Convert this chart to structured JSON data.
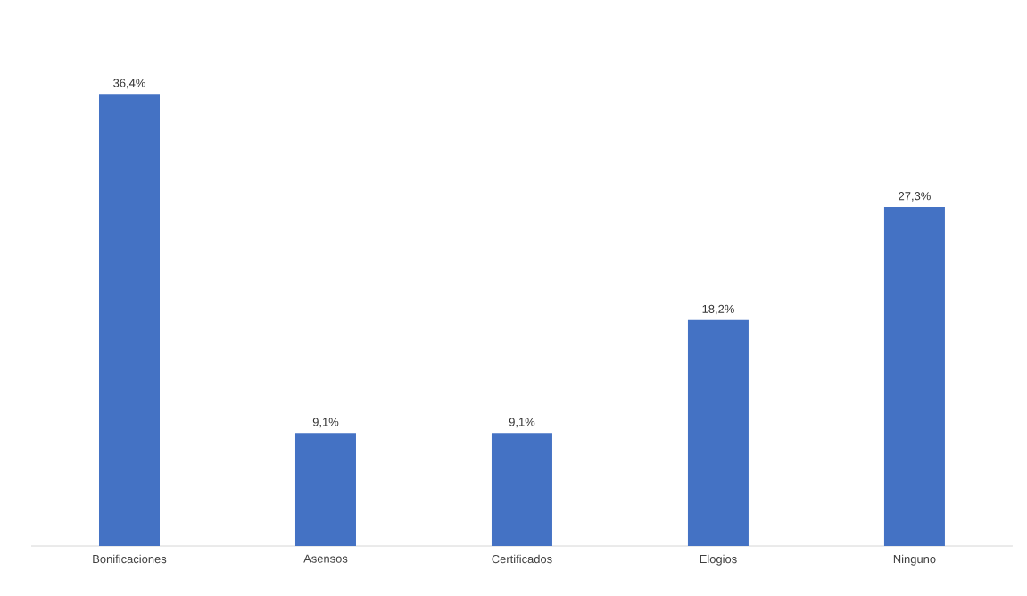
{
  "chart_data": {
    "type": "bar",
    "categories": [
      "Bonificaciones",
      "Asensos",
      "Certificados",
      "Elogios",
      "Ninguno"
    ],
    "values": [
      36.4,
      9.1,
      9.1,
      18.2,
      27.3
    ],
    "value_labels": [
      "36,4%",
      "9,1%",
      "9,1%",
      "18,2%",
      "27,3%"
    ],
    "color": "#4472c4"
  }
}
